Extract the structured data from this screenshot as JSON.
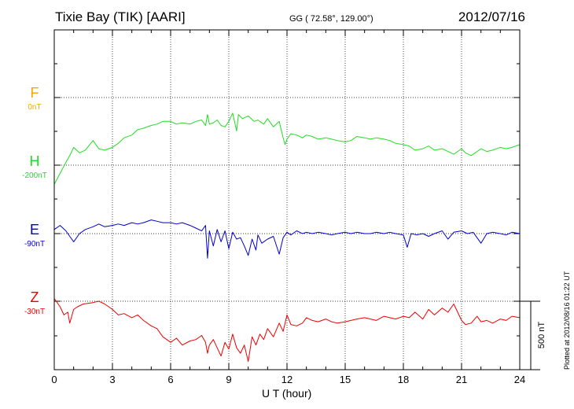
{
  "header": {
    "title": "Tixie Bay (TIK)  [AARI]",
    "coords": "GG ( 72.58°, 129.00°)",
    "date": "2012/07/16"
  },
  "footer": {
    "xlabel": "U T (hour)",
    "plotted": "Plotted at 2012/08/16 01:22 UT"
  },
  "scale": {
    "label": "500 nT"
  },
  "components": [
    {
      "key": "F",
      "name": "F",
      "offset": "0nT",
      "color": "#f5a800"
    },
    {
      "key": "H",
      "name": "H",
      "offset": "-200nT",
      "color": "#22dd22"
    },
    {
      "key": "E",
      "name": "E",
      "offset": "-90nT",
      "color": "#0000cc"
    },
    {
      "key": "Z",
      "name": "Z",
      "offset": "-30nT",
      "color": "#ee0000"
    }
  ],
  "chart_data": {
    "type": "line",
    "xlim": [
      0,
      24
    ],
    "xticks": [
      "0",
      "3",
      "6",
      "9",
      "12",
      "15",
      "18",
      "21",
      "24"
    ],
    "grid": true,
    "series": [
      {
        "name": "H",
        "color": "#22dd22",
        "x": [
          0,
          0.3,
          0.6,
          0.8,
          1.0,
          1.3,
          1.6,
          2.0,
          2.3,
          2.6,
          3.0,
          3.3,
          3.6,
          4.0,
          4.3,
          4.6,
          5.0,
          5.3,
          5.6,
          6.0,
          6.3,
          6.6,
          7.0,
          7.3,
          7.6,
          7.8,
          7.9,
          8.0,
          8.2,
          8.4,
          8.6,
          8.8,
          9.0,
          9.2,
          9.4,
          9.5,
          9.7,
          10.0,
          10.3,
          10.5,
          10.8,
          11.0,
          11.3,
          11.6,
          11.8,
          11.9,
          12.0,
          12.2,
          12.5,
          12.8,
          13.0,
          13.3,
          13.6,
          14.0,
          14.3,
          14.6,
          15.0,
          15.3,
          15.6,
          16.0,
          16.3,
          16.6,
          17.0,
          17.3,
          17.6,
          18.0,
          18.3,
          18.6,
          19.0,
          19.3,
          19.6,
          20.0,
          20.3,
          20.6,
          21.0,
          21.2,
          21.5,
          21.8,
          22.0,
          22.3,
          22.6,
          23.0,
          23.3,
          23.6,
          24.0
        ],
        "y": [
          -140,
          -60,
          20,
          70,
          130,
          90,
          110,
          180,
          120,
          110,
          130,
          160,
          200,
          220,
          260,
          270,
          290,
          300,
          320,
          320,
          300,
          310,
          300,
          320,
          330,
          290,
          370,
          300,
          310,
          330,
          290,
          280,
          320,
          380,
          250,
          370,
          340,
          360,
          320,
          330,
          300,
          340,
          280,
          320,
          200,
          150,
          190,
          230,
          220,
          200,
          220,
          210,
          190,
          200,
          190,
          180,
          170,
          180,
          210,
          200,
          190,
          200,
          190,
          180,
          160,
          150,
          140,
          110,
          120,
          140,
          110,
          120,
          100,
          80,
          120,
          90,
          70,
          100,
          120,
          100,
          110,
          130,
          120,
          130,
          150
        ]
      },
      {
        "name": "E",
        "color": "#0000cc",
        "x": [
          0,
          0.3,
          0.6,
          0.8,
          1.0,
          1.3,
          1.6,
          2.0,
          2.3,
          2.6,
          3.0,
          3.3,
          3.6,
          4.0,
          4.3,
          4.6,
          5.0,
          5.3,
          5.6,
          6.0,
          6.3,
          6.6,
          7.0,
          7.3,
          7.6,
          7.8,
          7.9,
          8.0,
          8.2,
          8.4,
          8.6,
          8.8,
          9.0,
          9.2,
          9.4,
          9.6,
          9.8,
          10.0,
          10.2,
          10.4,
          10.5,
          10.7,
          11.0,
          11.3,
          11.6,
          11.8,
          12.0,
          12.2,
          12.5,
          12.8,
          13.0,
          13.3,
          13.6,
          14.0,
          14.3,
          14.6,
          15.0,
          15.3,
          15.6,
          16.0,
          16.3,
          16.6,
          17.0,
          17.3,
          17.6,
          18.0,
          18.2,
          18.4,
          18.7,
          19.0,
          19.3,
          19.6,
          20.0,
          20.3,
          20.6,
          21.0,
          21.3,
          21.6,
          22.0,
          22.3,
          22.6,
          23.0,
          23.3,
          23.6,
          24.0
        ],
        "y": [
          30,
          60,
          20,
          -20,
          -60,
          0,
          30,
          50,
          70,
          50,
          60,
          70,
          60,
          80,
          70,
          80,
          100,
          90,
          80,
          80,
          70,
          80,
          60,
          40,
          20,
          60,
          -180,
          20,
          -90,
          30,
          -60,
          20,
          -110,
          10,
          -40,
          -30,
          -90,
          -160,
          -40,
          -120,
          -10,
          -70,
          -40,
          -20,
          -150,
          -30,
          10,
          -10,
          20,
          0,
          10,
          0,
          10,
          0,
          -10,
          0,
          10,
          0,
          10,
          0,
          0,
          10,
          0,
          10,
          0,
          -10,
          -100,
          0,
          -10,
          0,
          -20,
          0,
          20,
          -40,
          10,
          20,
          0,
          10,
          -70,
          0,
          10,
          0,
          -10,
          10,
          0
        ]
      },
      {
        "name": "Z",
        "color": "#ee0000",
        "x": [
          0,
          0.3,
          0.5,
          0.7,
          0.8,
          1.0,
          1.2,
          1.5,
          2.0,
          2.3,
          2.6,
          3.0,
          3.3,
          3.6,
          4.0,
          4.3,
          4.6,
          5.0,
          5.3,
          5.6,
          6.0,
          6.3,
          6.6,
          7.0,
          7.3,
          7.6,
          7.8,
          7.9,
          8.0,
          8.2,
          8.4,
          8.6,
          8.8,
          9.0,
          9.2,
          9.4,
          9.6,
          9.8,
          10.0,
          10.2,
          10.4,
          10.6,
          10.8,
          11.0,
          11.3,
          11.6,
          11.8,
          12.0,
          12.2,
          12.5,
          12.8,
          13.0,
          13.3,
          13.6,
          14.0,
          14.3,
          14.6,
          15.0,
          15.3,
          15.6,
          16.0,
          16.3,
          16.6,
          17.0,
          17.3,
          17.6,
          18.0,
          18.3,
          18.6,
          19.0,
          19.3,
          19.6,
          20.0,
          20.3,
          20.6,
          21.0,
          21.2,
          21.5,
          21.8,
          22.0,
          22.3,
          22.6,
          23.0,
          23.3,
          23.6,
          24.0
        ],
        "y": [
          20,
          -40,
          -100,
          -80,
          -160,
          -60,
          -40,
          -20,
          -10,
          0,
          -20,
          -60,
          -100,
          -90,
          -120,
          -100,
          -140,
          -180,
          -200,
          -260,
          -300,
          -270,
          -320,
          -290,
          -280,
          -250,
          -300,
          -380,
          -320,
          -280,
          -340,
          -400,
          -300,
          -350,
          -240,
          -340,
          -380,
          -320,
          -440,
          -260,
          -320,
          -240,
          -280,
          -200,
          -260,
          -160,
          -220,
          -100,
          -170,
          -180,
          -160,
          -120,
          -140,
          -150,
          -130,
          -150,
          -160,
          -150,
          -140,
          -130,
          -120,
          -130,
          -140,
          -110,
          -120,
          -130,
          -110,
          -120,
          -80,
          -130,
          -60,
          -100,
          -50,
          -80,
          -20,
          -140,
          -170,
          -160,
          -110,
          -150,
          -140,
          -160,
          -130,
          -140,
          -110,
          -120
        ]
      }
    ]
  }
}
